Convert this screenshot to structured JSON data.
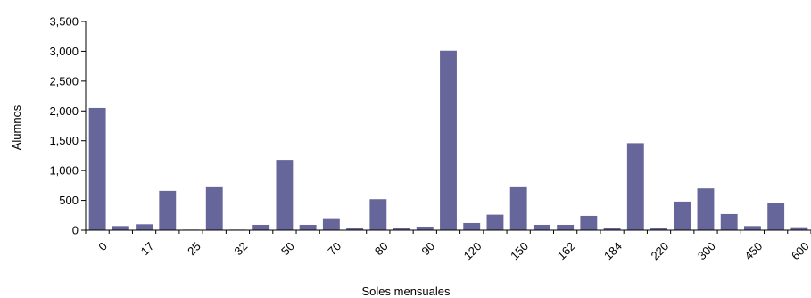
{
  "chart_data": {
    "type": "bar",
    "title": "",
    "xlabel": "Soles mensuales",
    "ylabel": "Alumnos",
    "ylim": [
      0,
      3500
    ],
    "yticks": [
      {
        "value": 0,
        "label": "0"
      },
      {
        "value": 500,
        "label": "500"
      },
      {
        "value": 1000,
        "label": "1,000"
      },
      {
        "value": 1500,
        "label": "1,500"
      },
      {
        "value": 2000,
        "label": "2,000"
      },
      {
        "value": 2500,
        "label": "2,500"
      },
      {
        "value": 3000,
        "label": "3,000"
      },
      {
        "value": 3500,
        "label": "3,500"
      }
    ],
    "x_tick_labels": [
      {
        "index": 0,
        "label": "0"
      },
      {
        "index": 2,
        "label": "17"
      },
      {
        "index": 4,
        "label": "25"
      },
      {
        "index": 6,
        "label": "32"
      },
      {
        "index": 8,
        "label": "50"
      },
      {
        "index": 10,
        "label": "70"
      },
      {
        "index": 12,
        "label": "80"
      },
      {
        "index": 14,
        "label": "90"
      },
      {
        "index": 16,
        "label": "120"
      },
      {
        "index": 18,
        "label": "150"
      },
      {
        "index": 20,
        "label": "162"
      },
      {
        "index": 22,
        "label": "184"
      },
      {
        "index": 24,
        "label": "220"
      },
      {
        "index": 26,
        "label": "300"
      },
      {
        "index": 28,
        "label": "450"
      },
      {
        "index": 30,
        "label": "600"
      }
    ],
    "values": [
      2050,
      70,
      100,
      660,
      10,
      720,
      10,
      90,
      1180,
      90,
      200,
      30,
      520,
      30,
      60,
      3010,
      120,
      260,
      720,
      90,
      90,
      240,
      30,
      1460,
      30,
      480,
      700,
      270,
      70,
      460,
      50
    ],
    "bar_color": "#66669a",
    "grid": false,
    "legend": "none"
  }
}
